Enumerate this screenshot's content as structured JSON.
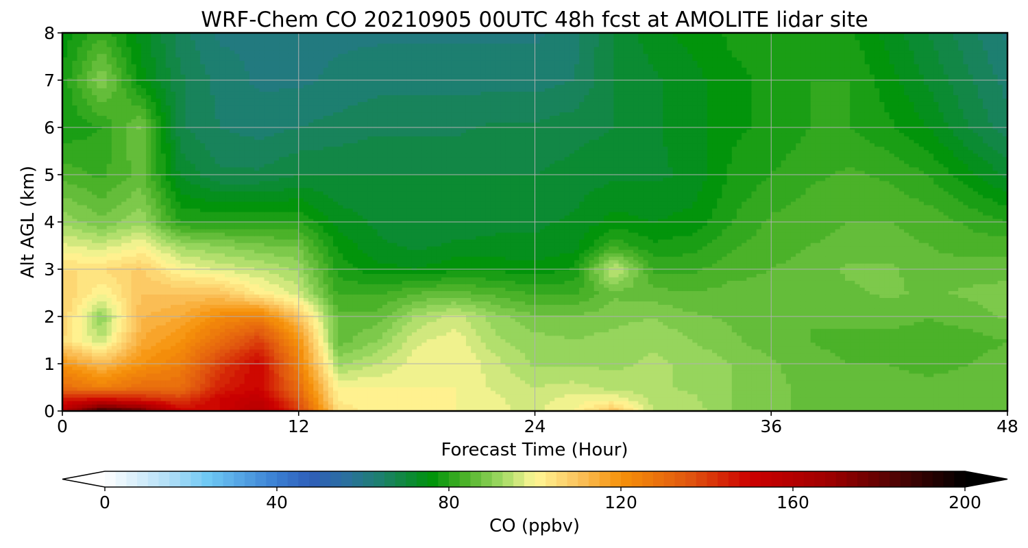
{
  "chart_data": {
    "type": "heatmap",
    "title": "WRF-Chem CO  20210905 00UTC 48h fcst at AMOLITE lidar site",
    "xlabel": "Forecast Time (Hour)",
    "ylabel": "Alt AGL (km)",
    "xlim": [
      0,
      48
    ],
    "ylim": [
      0,
      8
    ],
    "xticks": [
      "0",
      "12",
      "24",
      "36",
      "48"
    ],
    "yticks": [
      "0",
      "1",
      "2",
      "3",
      "4",
      "5",
      "6",
      "7",
      "8"
    ],
    "grid": true,
    "colorbar": {
      "label": "CO  (ppbv)",
      "range": [
        0,
        200
      ],
      "ticks": [
        "0",
        "40",
        "80",
        "120",
        "160",
        "200"
      ],
      "extend": "both",
      "stops": [
        {
          "v": 0,
          "c": "#ffffff"
        },
        {
          "v": 16,
          "c": "#aadcf6"
        },
        {
          "v": 24,
          "c": "#6ec8f4"
        },
        {
          "v": 40,
          "c": "#3a7ed2"
        },
        {
          "v": 48,
          "c": "#2f5eb8"
        },
        {
          "v": 56,
          "c": "#2b6fa0"
        },
        {
          "v": 64,
          "c": "#1d7f6e"
        },
        {
          "v": 76,
          "c": "#00930a"
        },
        {
          "v": 84,
          "c": "#4db32a"
        },
        {
          "v": 92,
          "c": "#9dd862"
        },
        {
          "v": 100,
          "c": "#fff796"
        },
        {
          "v": 110,
          "c": "#fbc35e"
        },
        {
          "v": 120,
          "c": "#f6920a"
        },
        {
          "v": 136,
          "c": "#e0560f"
        },
        {
          "v": 150,
          "c": "#cc0000"
        },
        {
          "v": 168,
          "c": "#a00000"
        },
        {
          "v": 185,
          "c": "#4a0202"
        },
        {
          "v": 200,
          "c": "#000000"
        }
      ]
    },
    "x": [
      0,
      2,
      4,
      6,
      8,
      10,
      12,
      14,
      16,
      18,
      20,
      22,
      24,
      26,
      28,
      30,
      32,
      34,
      36,
      38,
      40,
      42,
      44,
      46,
      48
    ],
    "y": [
      0,
      0.25,
      0.5,
      1,
      1.5,
      2,
      2.5,
      3,
      3.5,
      4,
      5,
      6,
      7,
      8
    ],
    "values": [
      [
        160,
        190,
        180,
        150,
        150,
        160,
        140,
        105,
        100,
        100,
        100,
        98,
        97,
        100,
        110,
        95,
        94,
        90,
        88,
        87,
        86,
        86,
        86,
        86,
        86
      ],
      [
        145,
        150,
        145,
        140,
        150,
        155,
        135,
        102,
        100,
        100,
        100,
        98,
        96,
        99,
        100,
        94,
        93,
        90,
        88,
        87,
        86,
        86,
        86,
        86,
        86
      ],
      [
        130,
        125,
        130,
        130,
        145,
        150,
        130,
        100,
        100,
        100,
        100,
        97,
        95,
        96,
        94,
        93,
        92,
        90,
        88,
        87,
        86,
        86,
        86,
        86,
        86
      ],
      [
        120,
        112,
        120,
        125,
        140,
        150,
        125,
        92,
        95,
        99,
        100,
        96,
        92,
        92,
        92,
        93,
        92,
        90,
        88,
        86,
        85,
        85,
        84,
        85,
        86
      ],
      [
        105,
        95,
        115,
        120,
        130,
        140,
        120,
        86,
        90,
        97,
        99,
        93,
        91,
        90,
        91,
        92,
        90,
        88,
        86,
        85,
        84,
        84,
        84,
        84,
        85
      ],
      [
        108,
        90,
        112,
        115,
        122,
        125,
        110,
        86,
        86,
        93,
        96,
        91,
        88,
        88,
        89,
        90,
        88,
        87,
        86,
        85,
        86,
        86,
        85,
        86,
        88
      ],
      [
        108,
        100,
        110,
        110,
        110,
        102,
        96,
        82,
        82,
        85,
        86,
        84,
        82,
        82,
        87,
        86,
        85,
        86,
        86,
        86,
        87,
        88,
        87,
        88,
        89
      ],
      [
        105,
        105,
        108,
        100,
        97,
        95,
        92,
        79,
        76,
        75,
        77,
        77,
        76,
        78,
        96,
        82,
        82,
        84,
        85,
        86,
        88,
        88,
        86,
        86,
        86
      ],
      [
        98,
        96,
        100,
        92,
        90,
        88,
        87,
        77,
        73,
        72,
        73,
        73,
        73,
        74,
        82,
        78,
        79,
        82,
        84,
        85,
        86,
        86,
        85,
        84,
        84
      ],
      [
        92,
        88,
        92,
        80,
        80,
        80,
        80,
        74,
        72,
        71,
        71,
        72,
        72,
        73,
        76,
        75,
        76,
        80,
        83,
        84,
        85,
        85,
        84,
        82,
        80
      ],
      [
        84,
        82,
        86,
        72,
        68,
        68,
        70,
        70,
        70,
        70,
        70,
        70,
        70,
        71,
        72,
        72,
        73,
        78,
        80,
        82,
        83,
        82,
        80,
        76,
        72
      ],
      [
        78,
        80,
        88,
        68,
        65,
        64,
        65,
        66,
        67,
        67,
        67,
        68,
        68,
        69,
        70,
        72,
        74,
        77,
        78,
        80,
        80,
        78,
        75,
        70,
        66
      ],
      [
        78,
        90,
        76,
        68,
        64,
        62,
        62,
        63,
        64,
        64,
        64,
        64,
        64,
        65,
        70,
        72,
        74,
        77,
        78,
        80,
        80,
        76,
        72,
        68,
        64
      ],
      [
        76,
        82,
        74,
        66,
        62,
        62,
        62,
        62,
        62,
        62,
        62,
        62,
        62,
        64,
        70,
        74,
        76,
        78,
        78,
        78,
        78,
        74,
        70,
        66,
        62
      ]
    ]
  }
}
